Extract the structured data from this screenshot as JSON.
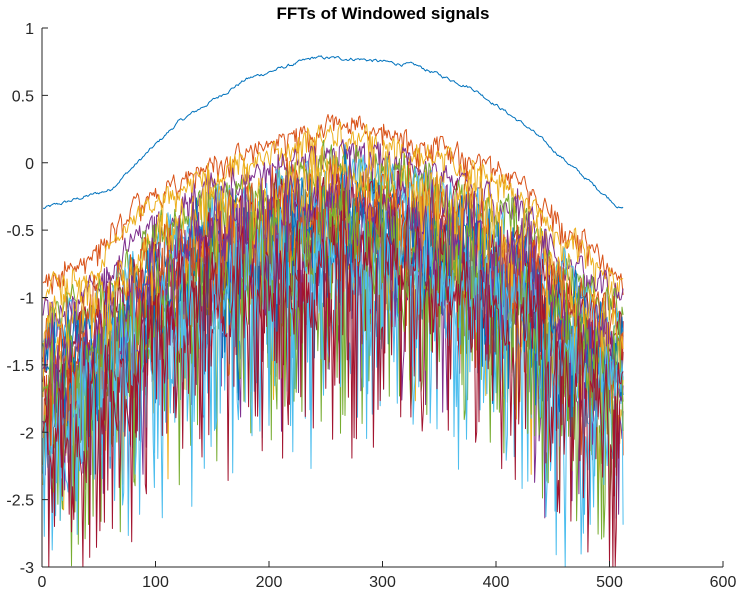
{
  "chart_data": {
    "type": "line",
    "title": "FFTs of Windowed signals",
    "xlabel": "",
    "ylabel": "",
    "xlim": [
      0,
      600
    ],
    "ylim": [
      -3,
      1
    ],
    "x_ticks": [
      "0",
      "100",
      "200",
      "300",
      "400",
      "500",
      "600"
    ],
    "y_ticks": [
      "1",
      "0.5",
      "0",
      "-0.5",
      "-1",
      "-1.5",
      "-2",
      "-2.5",
      "-3"
    ],
    "grid": false,
    "legend": "none",
    "n_points": 512,
    "colors": [
      "#0072BD",
      "#D95319",
      "#EDB120",
      "#7E2F8E",
      "#77AC30",
      "#4DBEEE",
      "#A2142F"
    ],
    "series": [
      {
        "label": "",
        "envelope": [
          [
            1,
            -0.34
          ],
          [
            60,
            -0.2
          ],
          [
            120,
            0.3
          ],
          [
            180,
            0.62
          ],
          [
            240,
            0.78
          ],
          [
            280,
            0.77
          ],
          [
            330,
            0.72
          ],
          [
            380,
            0.55
          ],
          [
            430,
            0.25
          ],
          [
            470,
            -0.05
          ],
          [
            510,
            -0.34
          ]
        ],
        "noise": 0.02,
        "spikes": 0
      },
      {
        "label": "",
        "envelope": [
          [
            1,
            -0.85
          ],
          [
            40,
            -0.75
          ],
          [
            90,
            -0.25
          ],
          [
            150,
            0.0
          ],
          [
            200,
            0.15
          ],
          [
            260,
            0.3
          ],
          [
            320,
            0.2
          ],
          [
            380,
            0.05
          ],
          [
            430,
            -0.2
          ],
          [
            480,
            -0.6
          ],
          [
            510,
            -0.85
          ]
        ],
        "noise": 0.1,
        "spikes": 0.15
      },
      {
        "label": "",
        "envelope": [
          [
            1,
            -0.95
          ],
          [
            40,
            -0.85
          ],
          [
            90,
            -0.35
          ],
          [
            150,
            -0.05
          ],
          [
            200,
            0.05
          ],
          [
            260,
            0.25
          ],
          [
            320,
            0.1
          ],
          [
            380,
            -0.05
          ],
          [
            430,
            -0.3
          ],
          [
            480,
            -0.7
          ],
          [
            510,
            -0.9
          ]
        ],
        "noise": 0.12,
        "spikes": 0.2
      },
      {
        "label": "",
        "envelope": [
          [
            1,
            -1.1
          ],
          [
            40,
            -0.95
          ],
          [
            90,
            -0.5
          ],
          [
            150,
            -0.15
          ],
          [
            200,
            -0.05
          ],
          [
            260,
            0.1
          ],
          [
            320,
            0.0
          ],
          [
            380,
            -0.15
          ],
          [
            430,
            -0.4
          ],
          [
            480,
            -0.8
          ],
          [
            510,
            -1.0
          ]
        ],
        "noise": 0.15,
        "spikes": 0.3
      },
      {
        "label": "",
        "envelope": [
          [
            1,
            -1.2
          ],
          [
            40,
            -1.05
          ],
          [
            90,
            -0.6
          ],
          [
            150,
            -0.25
          ],
          [
            200,
            -0.15
          ],
          [
            260,
            0.0
          ],
          [
            320,
            -0.1
          ],
          [
            380,
            -0.25
          ],
          [
            430,
            -0.5
          ],
          [
            480,
            -0.9
          ],
          [
            510,
            -1.1
          ]
        ],
        "noise": 0.2,
        "spikes": 0.4
      },
      {
        "label": "",
        "envelope": [
          [
            1,
            -1.3
          ],
          [
            40,
            -1.15
          ],
          [
            90,
            -0.7
          ],
          [
            150,
            -0.35
          ],
          [
            200,
            -0.25
          ],
          [
            260,
            -0.1
          ],
          [
            320,
            -0.2
          ],
          [
            380,
            -0.35
          ],
          [
            430,
            -0.6
          ],
          [
            480,
            -1.0
          ],
          [
            510,
            -1.2
          ]
        ],
        "noise": 0.25,
        "spikes": 0.5
      },
      {
        "label": "",
        "envelope": [
          [
            1,
            -1.4
          ],
          [
            40,
            -1.25
          ],
          [
            90,
            -0.8
          ],
          [
            150,
            -0.45
          ],
          [
            200,
            -0.35
          ],
          [
            260,
            -0.2
          ],
          [
            320,
            -0.3
          ],
          [
            380,
            -0.45
          ],
          [
            430,
            -0.7
          ],
          [
            480,
            -1.1
          ],
          [
            510,
            -1.3
          ]
        ],
        "noise": 0.3,
        "spikes": 0.6
      },
      {
        "label": "",
        "envelope": [
          [
            1,
            -1.5
          ],
          [
            40,
            -1.35
          ],
          [
            90,
            -0.9
          ],
          [
            150,
            -0.55
          ],
          [
            200,
            -0.45
          ],
          [
            260,
            -0.3
          ],
          [
            320,
            -0.4
          ],
          [
            380,
            -0.55
          ],
          [
            430,
            -0.8
          ],
          [
            480,
            -1.2
          ],
          [
            510,
            -1.4
          ]
        ],
        "noise": 0.35,
        "spikes": 0.7
      },
      {
        "label": "",
        "envelope": [
          [
            1,
            -1.6
          ],
          [
            40,
            -1.45
          ],
          [
            90,
            -1.0
          ],
          [
            150,
            -0.65
          ],
          [
            200,
            -0.55
          ],
          [
            260,
            -0.4
          ],
          [
            320,
            -0.5
          ],
          [
            380,
            -0.65
          ],
          [
            430,
            -0.9
          ],
          [
            480,
            -1.3
          ],
          [
            510,
            -1.5
          ]
        ],
        "noise": 0.4,
        "spikes": 0.8
      },
      {
        "label": "",
        "envelope": [
          [
            1,
            -1.7
          ],
          [
            40,
            -1.55
          ],
          [
            90,
            -1.1
          ],
          [
            150,
            -0.75
          ],
          [
            200,
            -0.65
          ],
          [
            260,
            -0.5
          ],
          [
            320,
            -0.6
          ],
          [
            380,
            -0.75
          ],
          [
            430,
            -1.0
          ],
          [
            480,
            -1.4
          ],
          [
            510,
            -1.6
          ]
        ],
        "noise": 0.45,
        "spikes": 0.9
      },
      {
        "label": "",
        "envelope": [
          [
            1,
            -1.8
          ],
          [
            40,
            -1.65
          ],
          [
            90,
            -1.2
          ],
          [
            150,
            -0.85
          ],
          [
            200,
            -0.75
          ],
          [
            260,
            -0.6
          ],
          [
            320,
            -0.7
          ],
          [
            380,
            -0.85
          ],
          [
            430,
            -1.1
          ],
          [
            480,
            -1.5
          ],
          [
            510,
            -1.7
          ]
        ],
        "noise": 0.5,
        "spikes": 1.0
      },
      {
        "label": "",
        "envelope": [
          [
            1,
            -1.9
          ],
          [
            40,
            -1.75
          ],
          [
            90,
            -1.3
          ],
          [
            150,
            -0.95
          ],
          [
            200,
            -0.85
          ],
          [
            260,
            -0.7
          ],
          [
            320,
            -0.8
          ],
          [
            380,
            -0.95
          ],
          [
            430,
            -1.2
          ],
          [
            480,
            -1.6
          ],
          [
            510,
            -1.8
          ]
        ],
        "noise": 0.55,
        "spikes": 1.1
      },
      {
        "label": "",
        "envelope": [
          [
            1,
            -2.0
          ],
          [
            40,
            -1.85
          ],
          [
            90,
            -1.4
          ],
          [
            150,
            -1.05
          ],
          [
            200,
            -0.95
          ],
          [
            260,
            -0.8
          ],
          [
            320,
            -0.9
          ],
          [
            380,
            -1.05
          ],
          [
            430,
            -1.3
          ],
          [
            480,
            -1.7
          ],
          [
            510,
            -1.9
          ]
        ],
        "noise": 0.6,
        "spikes": 1.2
      },
      {
        "label": "",
        "envelope": [
          [
            1,
            -1.75
          ],
          [
            40,
            -1.6
          ],
          [
            90,
            -1.15
          ],
          [
            150,
            -0.8
          ],
          [
            200,
            -0.7
          ],
          [
            260,
            -0.55
          ],
          [
            320,
            -0.65
          ],
          [
            380,
            -0.8
          ],
          [
            430,
            -1.05
          ],
          [
            480,
            -1.45
          ],
          [
            510,
            -1.65
          ]
        ],
        "noise": 0.5,
        "spikes": 1.0
      },
      {
        "label": "",
        "envelope": [
          [
            1,
            -1.55
          ],
          [
            40,
            -1.4
          ],
          [
            90,
            -0.95
          ],
          [
            150,
            -0.6
          ],
          [
            200,
            -0.5
          ],
          [
            260,
            -0.35
          ],
          [
            320,
            -0.45
          ],
          [
            380,
            -0.6
          ],
          [
            430,
            -0.85
          ],
          [
            480,
            -1.25
          ],
          [
            510,
            -1.45
          ]
        ],
        "noise": 0.45,
        "spikes": 0.9
      },
      {
        "label": "",
        "envelope": [
          [
            1,
            -1.35
          ],
          [
            40,
            -1.2
          ],
          [
            90,
            -0.75
          ],
          [
            150,
            -0.4
          ],
          [
            200,
            -0.3
          ],
          [
            260,
            -0.15
          ],
          [
            320,
            -0.25
          ],
          [
            380,
            -0.4
          ],
          [
            430,
            -0.65
          ],
          [
            480,
            -1.05
          ],
          [
            510,
            -1.25
          ]
        ],
        "noise": 0.35,
        "spikes": 0.7
      },
      {
        "label": "",
        "envelope": [
          [
            1,
            -1.25
          ],
          [
            40,
            -1.1
          ],
          [
            90,
            -0.65
          ],
          [
            150,
            -0.3
          ],
          [
            200,
            -0.2
          ],
          [
            260,
            -0.05
          ],
          [
            320,
            -0.15
          ],
          [
            380,
            -0.3
          ],
          [
            430,
            -0.55
          ],
          [
            480,
            -0.95
          ],
          [
            510,
            -1.15
          ]
        ],
        "noise": 0.3,
        "spikes": 0.6
      },
      {
        "label": "",
        "envelope": [
          [
            1,
            -1.45
          ],
          [
            40,
            -1.3
          ],
          [
            90,
            -0.85
          ],
          [
            150,
            -0.5
          ],
          [
            200,
            -0.4
          ],
          [
            260,
            -0.25
          ],
          [
            320,
            -0.35
          ],
          [
            380,
            -0.5
          ],
          [
            430,
            -0.75
          ],
          [
            480,
            -1.15
          ],
          [
            510,
            -1.35
          ]
        ],
        "noise": 0.4,
        "spikes": 0.8
      },
      {
        "label": "",
        "envelope": [
          [
            1,
            -1.65
          ],
          [
            40,
            -1.5
          ],
          [
            90,
            -1.05
          ],
          [
            150,
            -0.7
          ],
          [
            200,
            -0.6
          ],
          [
            260,
            -0.45
          ],
          [
            320,
            -0.55
          ],
          [
            380,
            -0.7
          ],
          [
            430,
            -0.95
          ],
          [
            480,
            -1.35
          ],
          [
            510,
            -1.55
          ]
        ],
        "noise": 0.5,
        "spikes": 1.0
      },
      {
        "label": "",
        "envelope": [
          [
            1,
            -1.85
          ],
          [
            40,
            -1.7
          ],
          [
            90,
            -1.25
          ],
          [
            150,
            -0.9
          ],
          [
            200,
            -0.8
          ],
          [
            260,
            -0.65
          ],
          [
            320,
            -0.75
          ],
          [
            380,
            -0.9
          ],
          [
            430,
            -1.15
          ],
          [
            480,
            -1.55
          ],
          [
            510,
            -1.75
          ]
        ],
        "noise": 0.55,
        "spikes": 1.1
      },
      {
        "label": "",
        "envelope": [
          [
            1,
            -1.95
          ],
          [
            40,
            -1.8
          ],
          [
            90,
            -1.35
          ],
          [
            150,
            -1.0
          ],
          [
            200,
            -0.9
          ],
          [
            260,
            -0.75
          ],
          [
            320,
            -0.85
          ],
          [
            380,
            -1.0
          ],
          [
            430,
            -1.25
          ],
          [
            480,
            -1.65
          ],
          [
            510,
            -1.85
          ]
        ],
        "noise": 0.6,
        "spikes": 1.2
      }
    ]
  }
}
